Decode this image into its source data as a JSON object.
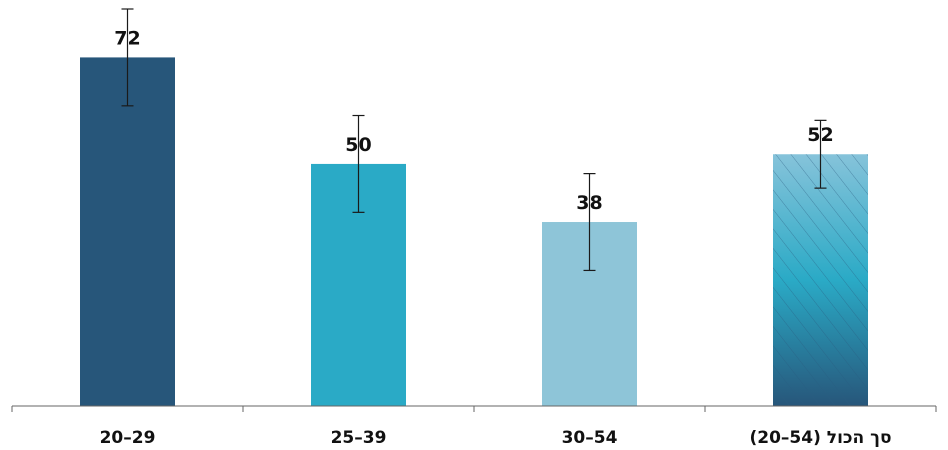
{
  "chart_data": {
    "type": "bar",
    "categories": [
      "29–20",
      "39–25",
      "54–30",
      "סך הכול (54–20)"
    ],
    "values": [
      72,
      50,
      38,
      52
    ],
    "data_labels": [
      "72",
      "50",
      "38",
      "52"
    ],
    "error_bars": [
      {
        "low": 62,
        "high": 82
      },
      {
        "low": 40,
        "high": 60
      },
      {
        "low": 28,
        "high": 48
      },
      {
        "low": 45,
        "high": 59
      }
    ],
    "title": "",
    "xlabel": "",
    "ylabel": "",
    "ylim": [
      0,
      82
    ],
    "grid": false,
    "legend": "none",
    "colors": [
      "#27567a",
      "#2aaac6",
      "#8ec5d8",
      "#86c3da"
    ],
    "patterned_bar": {
      "index": 3,
      "pattern": "diagonal-hatch",
      "gradient_top": "#86c3da",
      "gradient_mid": "#2aaac6",
      "gradient_bottom": "#27567a",
      "hatch_color": "#2a5c80"
    }
  }
}
